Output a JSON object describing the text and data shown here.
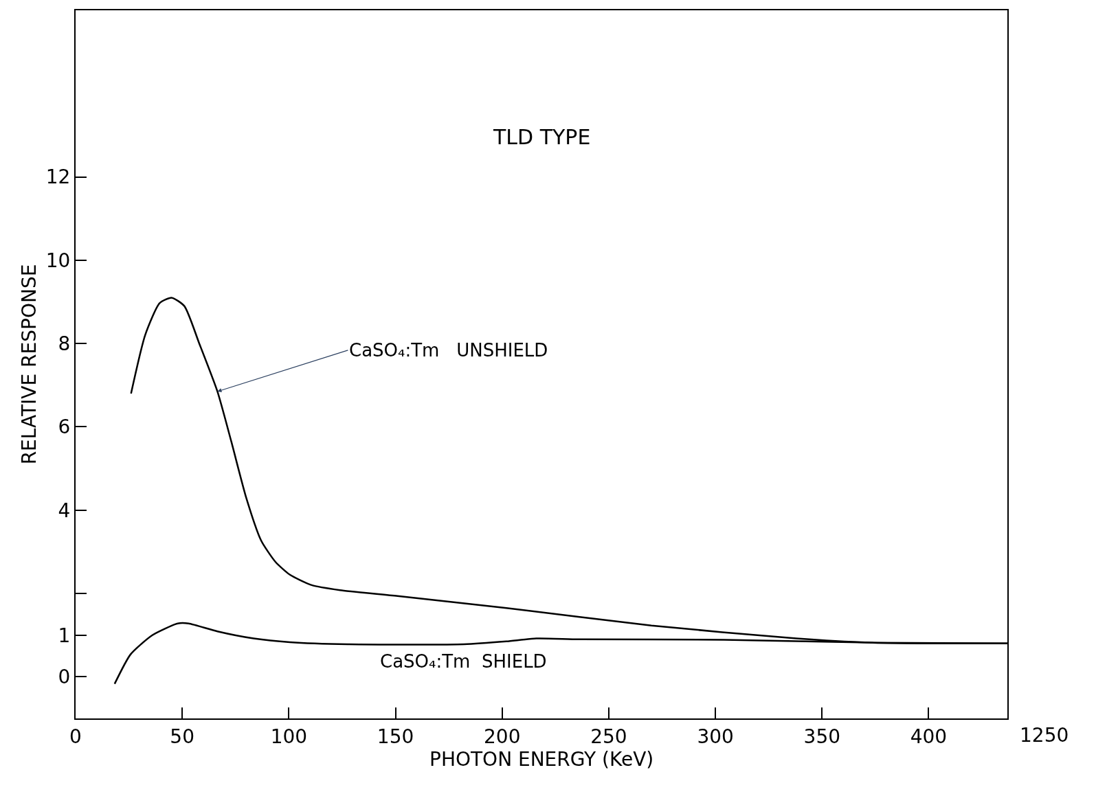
{
  "chart_data": {
    "type": "line",
    "title": "TLD TYPE",
    "xlabel": "PHOTON ENERGY (KeV)",
    "ylabel": "RELATIVE RESPONSE",
    "xlim": [
      0,
      437
    ],
    "xticks": [
      0,
      50,
      100,
      150,
      200,
      250,
      300,
      350,
      400
    ],
    "ylim": [
      -1,
      16
    ],
    "yticks": [
      0,
      1,
      {
        "value": 2,
        "label": null
      },
      4,
      6,
      8,
      10,
      12
    ],
    "legend": false,
    "annotations": [
      "1250"
    ],
    "series": [
      {
        "name": "CaSO₄:Tm   UNSHIELD",
        "color": "#000000",
        "x": [
          26,
          32.6,
          39.4,
          45,
          51,
          58,
          66.5,
          73,
          80,
          87,
          93.7,
          100.5,
          110.7,
          124,
          151,
          202,
          270,
          338,
          372,
          400,
          437
        ],
        "values": [
          6.8,
          8.2,
          8.97,
          9.1,
          8.9,
          8.0,
          6.85,
          5.65,
          4.3,
          3.27,
          2.76,
          2.45,
          2.2,
          2.08,
          1.94,
          1.65,
          1.23,
          0.92,
          0.82,
          0.8,
          0.8
        ]
      },
      {
        "name": "CaSO₄:Tm  SHIELD",
        "color": "#000000",
        "x": [
          18.3,
          25.8,
          36,
          47.9,
          53,
          66.5,
          83.5,
          100.5,
          127.7,
          182,
          202,
          216,
          236,
          304,
          372,
          437
        ],
        "values": [
          -0.17,
          0.54,
          1.0,
          1.28,
          1.28,
          1.09,
          0.92,
          0.83,
          0.78,
          0.78,
          0.85,
          0.92,
          0.9,
          0.89,
          0.82,
          0.8
        ]
      }
    ]
  }
}
